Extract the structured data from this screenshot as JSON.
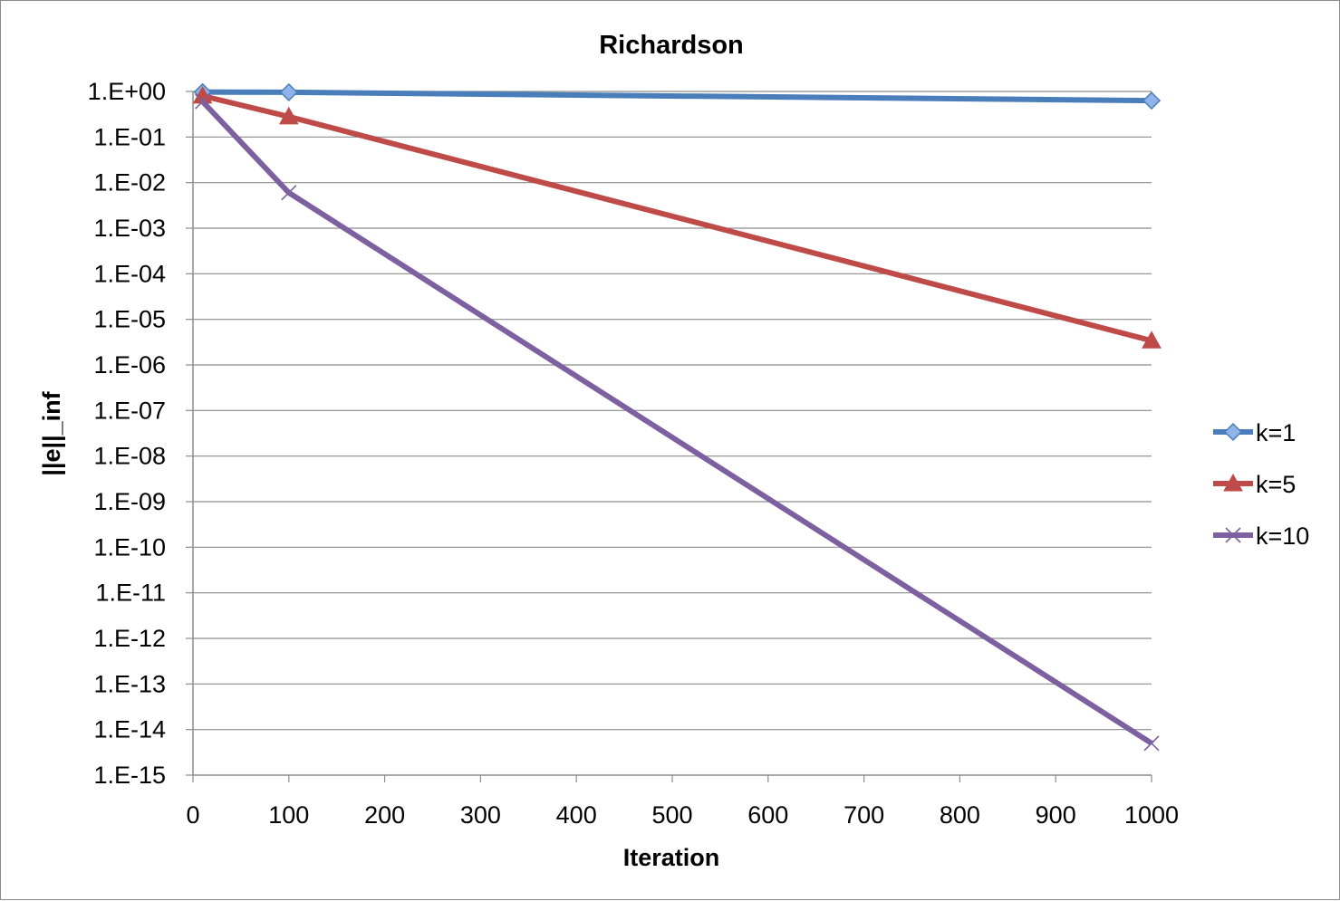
{
  "chart_data": {
    "type": "line",
    "title": "Richardson",
    "xlabel": "Iteration",
    "ylabel": "||e||_inf",
    "yscale": "log",
    "xlim": [
      0,
      1000
    ],
    "ylim": [
      1e-15,
      1
    ],
    "x_ticks": [
      "0",
      "100",
      "200",
      "300",
      "400",
      "500",
      "600",
      "700",
      "800",
      "900",
      "1000"
    ],
    "y_ticks": [
      "1.E+00",
      "1.E-01",
      "1.E-02",
      "1.E-03",
      "1.E-04",
      "1.E-05",
      "1.E-06",
      "1.E-07",
      "1.E-08",
      "1.E-09",
      "1.E-10",
      "1.E-11",
      "1.E-12",
      "1.E-13",
      "1.E-14",
      "1.E-15"
    ],
    "grid": "horizontal",
    "legend_position": "right",
    "series": [
      {
        "name": "k=1",
        "color": "#4a7ebb",
        "marker": "diamond",
        "x": [
          10,
          100,
          1000
        ],
        "y": [
          0.97,
          0.96,
          0.63
        ]
      },
      {
        "name": "k=5",
        "color": "#be4b48",
        "marker": "triangle",
        "x": [
          10,
          100,
          1000
        ],
        "y": [
          0.8,
          0.28,
          3.4e-06
        ]
      },
      {
        "name": "k=10",
        "color": "#7d60a0",
        "marker": "x",
        "x": [
          10,
          100,
          1000
        ],
        "y": [
          0.6,
          0.006,
          5e-15
        ]
      }
    ]
  }
}
